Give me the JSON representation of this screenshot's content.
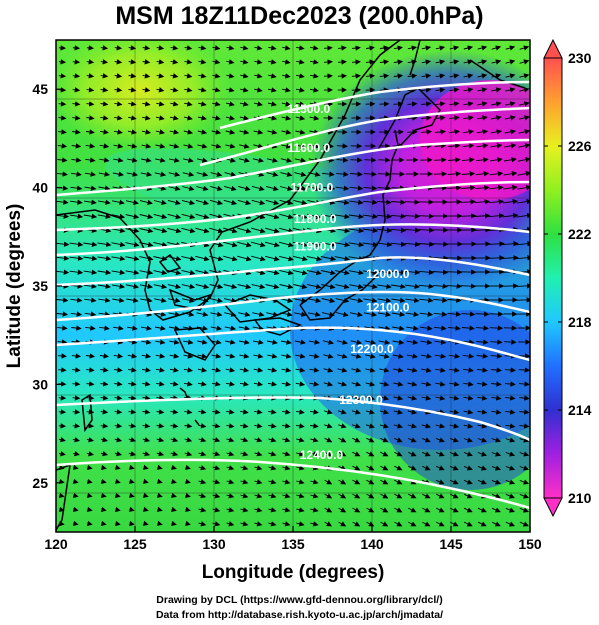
{
  "title": "MSM 18Z11Dec2023 (200.0hPa)",
  "map": {
    "x_axis": {
      "label": "Longitude (degrees)",
      "range": [
        120,
        150
      ],
      "ticks": [
        "120",
        "125",
        "130",
        "135",
        "140",
        "145",
        "150"
      ]
    },
    "y_axis": {
      "label": "Latitude  (degrees)",
      "range": [
        22.5,
        47.5
      ],
      "ticks": [
        "25",
        "30",
        "35",
        "40",
        "45"
      ]
    },
    "fill_field": "temperature (K)",
    "contours": [
      {
        "label": "11500.0",
        "lon": 136.0,
        "lat": 43.8
      },
      {
        "label": "11600.0",
        "lon": 136.0,
        "lat": 41.8
      },
      {
        "label": "11700.0",
        "lon": 136.2,
        "lat": 39.8
      },
      {
        "label": "11800.0",
        "lon": 136.4,
        "lat": 38.2
      },
      {
        "label": "11900.0",
        "lon": 136.4,
        "lat": 36.8
      },
      {
        "label": "12000.0",
        "lon": 141.0,
        "lat": 35.4
      },
      {
        "label": "12100.0",
        "lon": 141.0,
        "lat": 33.7
      },
      {
        "label": "12200.0",
        "lon": 140.0,
        "lat": 31.6
      },
      {
        "label": "12300.0",
        "lon": 139.3,
        "lat": 29.0
      },
      {
        "label": "12400.0",
        "lon": 136.8,
        "lat": 26.2
      }
    ],
    "grid": true
  },
  "colorbar": {
    "min": 210,
    "max": 230,
    "ticks": [
      "230",
      "226",
      "222",
      "218",
      "214",
      "210"
    ],
    "colors": [
      "#ff30c8",
      "#a020e0",
      "#3030d0",
      "#2070ff",
      "#20c8ff",
      "#20f0b0",
      "#30e040",
      "#90f020",
      "#e8f020",
      "#ffa030",
      "#ff5050"
    ]
  },
  "credits": {
    "line1": "Drawing by DCL (https://www.gfd-dennou.org/library/dcl/)",
    "line2": "Data from http://database.rish.kyoto-u.ac.jp/arch/jmadata/"
  }
}
